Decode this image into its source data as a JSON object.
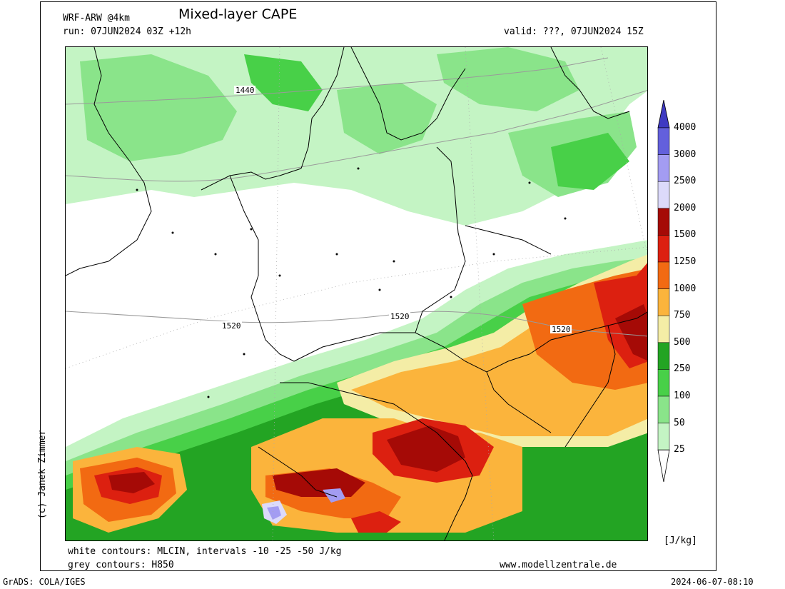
{
  "header": {
    "model": "WRF-ARW @4km",
    "title": "Mixed-layer CAPE",
    "run": "run: 07JUN2024 03Z +12h",
    "valid": "valid: ???, 07JUN2024 15Z"
  },
  "map": {
    "h850_contour_labels": [
      "1440",
      "1520",
      "1520",
      "1520"
    ]
  },
  "colorbar": {
    "unit": "[J/kg]",
    "levels": [
      {
        "value": "4000",
        "color": "#3e3ac2"
      },
      {
        "value": "3000",
        "color": "#6360dc"
      },
      {
        "value": "2500",
        "color": "#a39cf2"
      },
      {
        "value": "2000",
        "color": "#dcdafa"
      },
      {
        "value": "1500",
        "color": "#a50a06"
      },
      {
        "value": "1250",
        "color": "#dc2010"
      },
      {
        "value": "1000",
        "color": "#f26a12"
      },
      {
        "value": "750",
        "color": "#fbb43c"
      },
      {
        "value": "500",
        "color": "#f4eda6"
      },
      {
        "value": "250",
        "color": "#23a423"
      },
      {
        "value": "100",
        "color": "#48d048"
      },
      {
        "value": "50",
        "color": "#8ae48a"
      },
      {
        "value": "25",
        "color": "#c4f4c4"
      }
    ],
    "bottom_color": "#ffffff"
  },
  "footer": {
    "white_contours": "white contours: MLCIN, intervals -10 -25 -50 J/kg",
    "grey_contours": "grey contours: H850",
    "website": "www.modellzentrale.de",
    "credit": "(c) Janek Zimmer",
    "grads": "GrADS: COLA/IGES",
    "timestamp": "2024-06-07-08:10"
  }
}
